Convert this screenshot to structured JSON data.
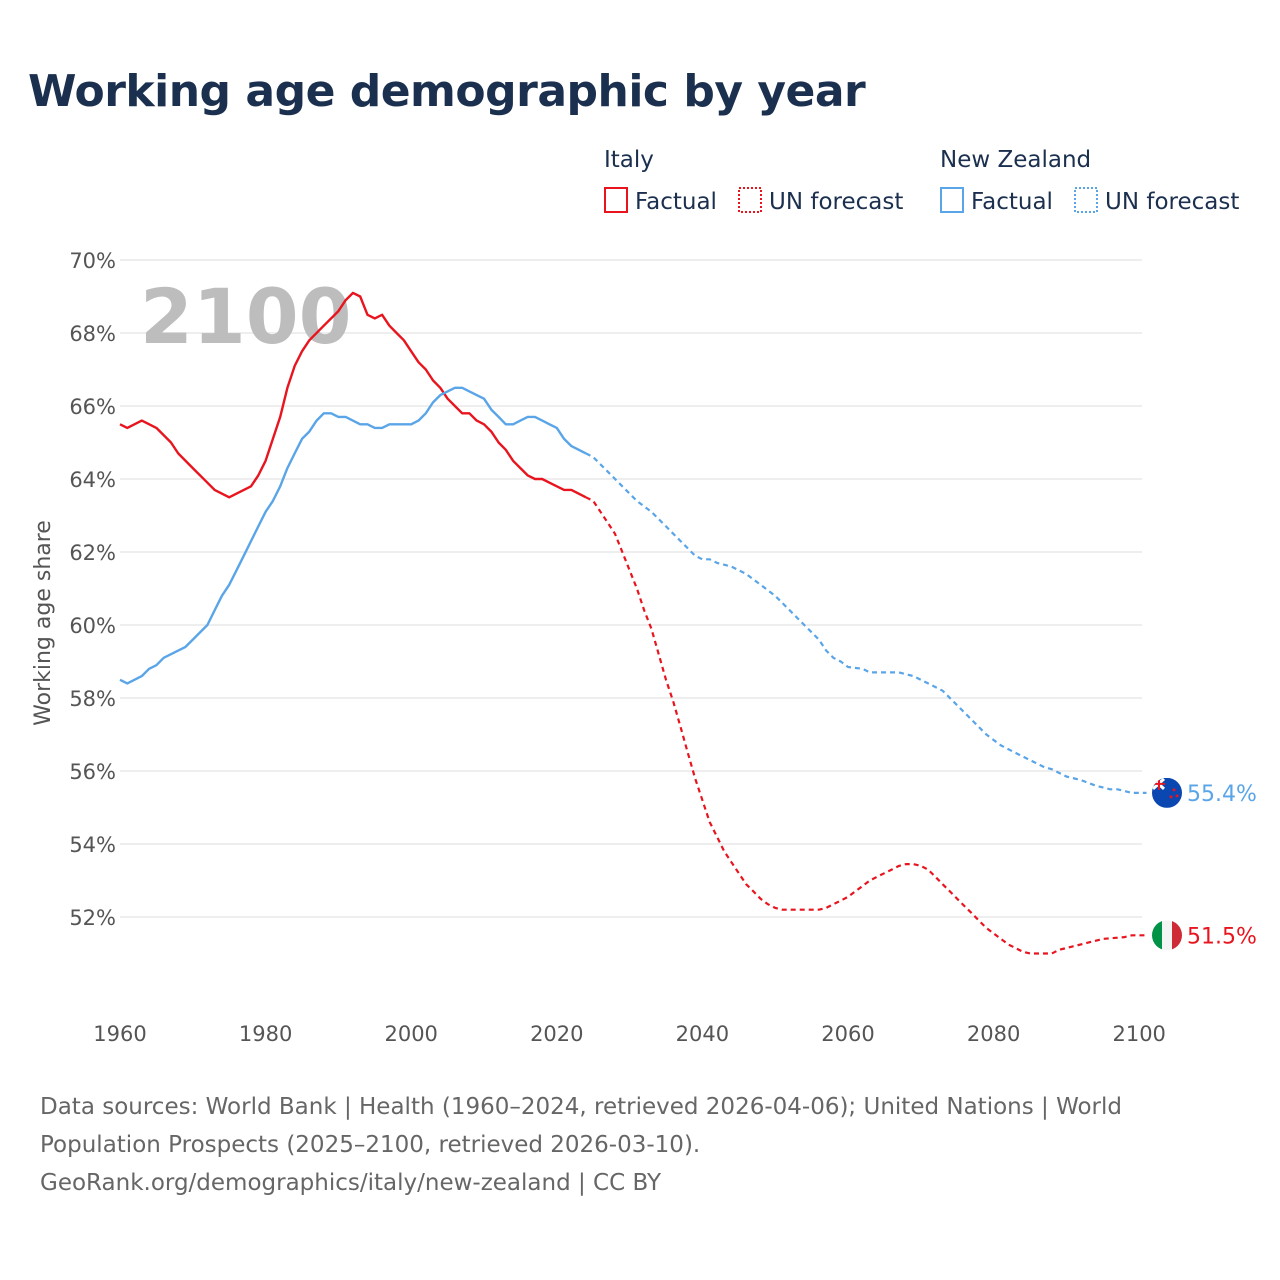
{
  "title": "Working age demographic by year",
  "footer": {
    "sources": "Data sources: World Bank | Health (1960–2024, retrieved 2026-04-06); United Nations | World Population Prospects (2025–2100, retrieved 2026-03-10).",
    "credit": "GeoRank.org/demographics/italy/new-zealand | CC BY"
  },
  "colors": {
    "italy": "#e8141e",
    "new_zealand": "#5aa5e8",
    "title": "#1b2f4e",
    "grid": "#e4e4e4",
    "watermark": "#bdbdbd"
  },
  "legend": {
    "groups": [
      {
        "name": "Italy",
        "color": "#e8141e",
        "items": [
          {
            "label": "Factual",
            "style": "solid"
          },
          {
            "label": "UN forecast",
            "style": "dotted"
          }
        ]
      },
      {
        "name": "New Zealand",
        "color": "#5aa5e8",
        "items": [
          {
            "label": "Factual",
            "style": "solid"
          },
          {
            "label": "UN forecast",
            "style": "dotted"
          }
        ]
      }
    ]
  },
  "chart_data": {
    "type": "line",
    "title": "Working age demographic by year",
    "ylabel": "Working age share",
    "xlabel": "",
    "year_label": "2100",
    "xlim": [
      1960,
      2102
    ],
    "ylim": [
      50,
      70
    ],
    "x_ticks": [
      1960,
      1980,
      2000,
      2020,
      2040,
      2060,
      2080,
      2100
    ],
    "y_ticks": [
      52,
      54,
      56,
      58,
      60,
      62,
      64,
      66,
      68,
      70
    ],
    "y_tick_labels": [
      "52%",
      "54%",
      "56%",
      "58%",
      "60%",
      "62%",
      "64%",
      "66%",
      "68%",
      "70%"
    ],
    "x_tick_labels": [
      "1960",
      "1980",
      "2000",
      "2020",
      "2040",
      "2060",
      "2080",
      "2100"
    ],
    "factual_end_year": 2024,
    "series": [
      {
        "name": "Italy",
        "color": "#e8141e",
        "flag": "italy-flag",
        "end_label": "51.5%",
        "points": [
          [
            1960,
            65.5
          ],
          [
            1961,
            65.4
          ],
          [
            1963,
            65.6
          ],
          [
            1965,
            65.4
          ],
          [
            1967,
            65.0
          ],
          [
            1968,
            64.7
          ],
          [
            1970,
            64.3
          ],
          [
            1972,
            63.9
          ],
          [
            1973,
            63.7
          ],
          [
            1975,
            63.5
          ],
          [
            1977,
            63.7
          ],
          [
            1978,
            63.8
          ],
          [
            1979,
            64.1
          ],
          [
            1980,
            64.5
          ],
          [
            1982,
            65.7
          ],
          [
            1983,
            66.5
          ],
          [
            1984,
            67.1
          ],
          [
            1985,
            67.5
          ],
          [
            1986,
            67.8
          ],
          [
            1988,
            68.2
          ],
          [
            1990,
            68.6
          ],
          [
            1991,
            68.9
          ],
          [
            1992,
            69.1
          ],
          [
            1993,
            69.0
          ],
          [
            1994,
            68.5
          ],
          [
            1995,
            68.4
          ],
          [
            1996,
            68.5
          ],
          [
            1997,
            68.2
          ],
          [
            1998,
            68.0
          ],
          [
            1999,
            67.8
          ],
          [
            2000,
            67.5
          ],
          [
            2001,
            67.2
          ],
          [
            2002,
            67.0
          ],
          [
            2003,
            66.7
          ],
          [
            2004,
            66.5
          ],
          [
            2005,
            66.2
          ],
          [
            2006,
            66.0
          ],
          [
            2007,
            65.8
          ],
          [
            2008,
            65.8
          ],
          [
            2009,
            65.6
          ],
          [
            2010,
            65.5
          ],
          [
            2011,
            65.3
          ],
          [
            2012,
            65.0
          ],
          [
            2013,
            64.8
          ],
          [
            2014,
            64.5
          ],
          [
            2015,
            64.3
          ],
          [
            2016,
            64.1
          ],
          [
            2017,
            64.0
          ],
          [
            2018,
            64.0
          ],
          [
            2019,
            63.9
          ],
          [
            2020,
            63.8
          ],
          [
            2021,
            63.7
          ],
          [
            2022,
            63.7
          ],
          [
            2024,
            63.5
          ],
          [
            2025,
            63.4
          ],
          [
            2026,
            63.1
          ],
          [
            2027,
            62.8
          ],
          [
            2028,
            62.5
          ],
          [
            2029,
            62.0
          ],
          [
            2030,
            61.5
          ],
          [
            2031,
            61.0
          ],
          [
            2032,
            60.4
          ],
          [
            2033,
            59.9
          ],
          [
            2034,
            59.2
          ],
          [
            2035,
            58.5
          ],
          [
            2036,
            57.9
          ],
          [
            2037,
            57.2
          ],
          [
            2038,
            56.5
          ],
          [
            2039,
            55.8
          ],
          [
            2040,
            55.2
          ],
          [
            2041,
            54.6
          ],
          [
            2042,
            54.2
          ],
          [
            2043,
            53.8
          ],
          [
            2044,
            53.5
          ],
          [
            2045,
            53.2
          ],
          [
            2046,
            52.9
          ],
          [
            2047,
            52.7
          ],
          [
            2048,
            52.5
          ],
          [
            2049,
            52.35
          ],
          [
            2050,
            52.25
          ],
          [
            2051,
            52.2
          ],
          [
            2054,
            52.2
          ],
          [
            2056,
            52.2
          ],
          [
            2057,
            52.25
          ],
          [
            2058,
            52.35
          ],
          [
            2059,
            52.45
          ],
          [
            2060,
            52.55
          ],
          [
            2061,
            52.7
          ],
          [
            2062,
            52.85
          ],
          [
            2063,
            53.0
          ],
          [
            2064,
            53.1
          ],
          [
            2065,
            53.2
          ],
          [
            2066,
            53.3
          ],
          [
            2067,
            53.4
          ],
          [
            2068,
            53.45
          ],
          [
            2069,
            53.45
          ],
          [
            2070,
            53.4
          ],
          [
            2071,
            53.3
          ],
          [
            2072,
            53.1
          ],
          [
            2073,
            52.9
          ],
          [
            2074,
            52.7
          ],
          [
            2075,
            52.5
          ],
          [
            2076,
            52.3
          ],
          [
            2077,
            52.1
          ],
          [
            2078,
            51.9
          ],
          [
            2079,
            51.7
          ],
          [
            2080,
            51.55
          ],
          [
            2081,
            51.4
          ],
          [
            2082,
            51.25
          ],
          [
            2083,
            51.15
          ],
          [
            2084,
            51.05
          ],
          [
            2085,
            51.0
          ],
          [
            2088,
            51.0
          ],
          [
            2089,
            51.1
          ],
          [
            2091,
            51.2
          ],
          [
            2093,
            51.3
          ],
          [
            2095,
            51.4
          ],
          [
            2098,
            51.45
          ],
          [
            2099,
            51.5
          ],
          [
            2101,
            51.5
          ]
        ]
      },
      {
        "name": "New Zealand",
        "color": "#5aa5e8",
        "flag": "new-zealand-flag",
        "end_label": "55.4%",
        "points": [
          [
            1960,
            58.5
          ],
          [
            1961,
            58.4
          ],
          [
            1963,
            58.6
          ],
          [
            1964,
            58.8
          ],
          [
            1965,
            58.9
          ],
          [
            1966,
            59.1
          ],
          [
            1968,
            59.3
          ],
          [
            1969,
            59.4
          ],
          [
            1970,
            59.6
          ],
          [
            1972,
            60.0
          ],
          [
            1973,
            60.4
          ],
          [
            1974,
            60.8
          ],
          [
            1975,
            61.1
          ],
          [
            1976,
            61.5
          ],
          [
            1977,
            61.9
          ],
          [
            1978,
            62.3
          ],
          [
            1979,
            62.7
          ],
          [
            1980,
            63.1
          ],
          [
            1981,
            63.4
          ],
          [
            1982,
            63.8
          ],
          [
            1983,
            64.3
          ],
          [
            1984,
            64.7
          ],
          [
            1985,
            65.1
          ],
          [
            1986,
            65.3
          ],
          [
            1987,
            65.6
          ],
          [
            1988,
            65.8
          ],
          [
            1989,
            65.8
          ],
          [
            1990,
            65.7
          ],
          [
            1991,
            65.7
          ],
          [
            1993,
            65.5
          ],
          [
            1994,
            65.5
          ],
          [
            1995,
            65.4
          ],
          [
            1996,
            65.4
          ],
          [
            1997,
            65.5
          ],
          [
            2000,
            65.5
          ],
          [
            2001,
            65.6
          ],
          [
            2002,
            65.8
          ],
          [
            2003,
            66.1
          ],
          [
            2004,
            66.3
          ],
          [
            2005,
            66.4
          ],
          [
            2006,
            66.5
          ],
          [
            2007,
            66.5
          ],
          [
            2008,
            66.4
          ],
          [
            2010,
            66.2
          ],
          [
            2011,
            65.9
          ],
          [
            2012,
            65.7
          ],
          [
            2013,
            65.5
          ],
          [
            2014,
            65.5
          ],
          [
            2015,
            65.6
          ],
          [
            2016,
            65.7
          ],
          [
            2017,
            65.7
          ],
          [
            2018,
            65.6
          ],
          [
            2019,
            65.5
          ],
          [
            2020,
            65.4
          ],
          [
            2021,
            65.1
          ],
          [
            2022,
            64.9
          ],
          [
            2024,
            64.7
          ],
          [
            2025,
            64.6
          ],
          [
            2027,
            64.2
          ],
          [
            2029,
            63.8
          ],
          [
            2031,
            63.4
          ],
          [
            2033,
            63.1
          ],
          [
            2035,
            62.7
          ],
          [
            2037,
            62.3
          ],
          [
            2039,
            61.9
          ],
          [
            2040,
            61.8
          ],
          [
            2041,
            61.8
          ],
          [
            2042,
            61.7
          ],
          [
            2044,
            61.6
          ],
          [
            2046,
            61.4
          ],
          [
            2048,
            61.1
          ],
          [
            2050,
            60.8
          ],
          [
            2052,
            60.4
          ],
          [
            2054,
            60.0
          ],
          [
            2056,
            59.6
          ],
          [
            2057,
            59.3
          ],
          [
            2058,
            59.1
          ],
          [
            2059,
            59.0
          ],
          [
            2060,
            58.85
          ],
          [
            2062,
            58.8
          ],
          [
            2063,
            58.7
          ],
          [
            2067,
            58.7
          ],
          [
            2068,
            58.65
          ],
          [
            2069,
            58.6
          ],
          [
            2071,
            58.4
          ],
          [
            2073,
            58.2
          ],
          [
            2075,
            57.8
          ],
          [
            2077,
            57.4
          ],
          [
            2079,
            57.0
          ],
          [
            2081,
            56.7
          ],
          [
            2083,
            56.5
          ],
          [
            2085,
            56.3
          ],
          [
            2087,
            56.1
          ],
          [
            2088,
            56.05
          ],
          [
            2090,
            55.85
          ],
          [
            2092,
            55.75
          ],
          [
            2094,
            55.6
          ],
          [
            2096,
            55.5
          ],
          [
            2097,
            55.5
          ],
          [
            2099,
            55.4
          ],
          [
            2101,
            55.4
          ]
        ]
      }
    ]
  }
}
